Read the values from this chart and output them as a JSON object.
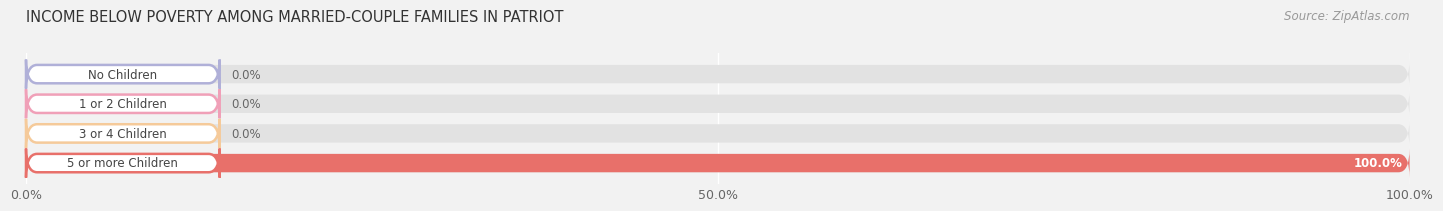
{
  "title": "INCOME BELOW POVERTY AMONG MARRIED-COUPLE FAMILIES IN PATRIOT",
  "source": "Source: ZipAtlas.com",
  "categories": [
    "No Children",
    "1 or 2 Children",
    "3 or 4 Children",
    "5 or more Children"
  ],
  "values": [
    0.0,
    0.0,
    0.0,
    100.0
  ],
  "bar_colors": [
    "#b0b0d8",
    "#f0a0b8",
    "#f5ca9a",
    "#e8706a"
  ],
  "xlim": [
    0,
    100
  ],
  "xticks": [
    0.0,
    50.0,
    100.0
  ],
  "xtick_labels": [
    "0.0%",
    "50.0%",
    "100.0%"
  ],
  "bar_height": 0.62,
  "background_color": "#f2f2f2",
  "bar_bg_color": "#e2e2e2",
  "title_fontsize": 10.5,
  "source_fontsize": 8.5,
  "tick_fontsize": 9,
  "label_fontsize": 8.5,
  "value_fontsize": 8.5
}
